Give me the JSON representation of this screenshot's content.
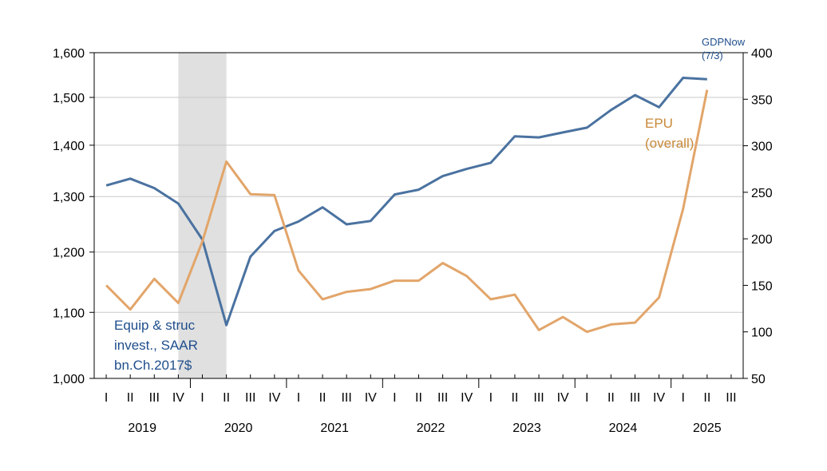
{
  "chart_data": {
    "type": "line",
    "x": [
      "2019Q1",
      "2019Q2",
      "2019Q3",
      "2019Q4",
      "2020Q1",
      "2020Q2",
      "2020Q3",
      "2020Q4",
      "2021Q1",
      "2021Q2",
      "2021Q3",
      "2021Q4",
      "2022Q1",
      "2022Q2",
      "2022Q3",
      "2022Q4",
      "2023Q1",
      "2023Q2",
      "2023Q3",
      "2023Q4",
      "2024Q1",
      "2024Q2",
      "2024Q3",
      "2024Q4",
      "2025Q1",
      "2025Q2"
    ],
    "quarter_ticks": [
      "I",
      "II",
      "III",
      "IV",
      "I",
      "II",
      "III",
      "IV",
      "I",
      "II",
      "III",
      "IV",
      "I",
      "II",
      "III",
      "IV",
      "I",
      "II",
      "III",
      "IV",
      "I",
      "II",
      "III",
      "IV",
      "I",
      "II",
      "III"
    ],
    "years": [
      "2019",
      "2020",
      "2021",
      "2022",
      "2023",
      "2024",
      "2025"
    ],
    "left_axis": {
      "ticks": [
        1000,
        1100,
        1200,
        1300,
        1400,
        1500,
        1600
      ],
      "tick_labels": [
        "1,000",
        "1,100",
        "1,200",
        "1,300",
        "1,400",
        "1,500",
        "1,600"
      ],
      "ylim": [
        1000,
        1600
      ],
      "scale": "log"
    },
    "right_axis": {
      "ticks": [
        50,
        100,
        150,
        200,
        250,
        300,
        350,
        400
      ],
      "tick_labels": [
        "50",
        "100",
        "150",
        "200",
        "250",
        "300",
        "350",
        "400"
      ],
      "ylim": [
        50,
        400
      ],
      "scale": "linear"
    },
    "grid": true,
    "recession_shading": {
      "start": "2019Q4",
      "end": "2020Q2",
      "color": "#e0e0e0"
    },
    "series": [
      {
        "name": "Equip & struc invest., SAAR bn.Ch.2017$",
        "axis": "left",
        "color": "#4a72a0",
        "values": [
          1321,
          1334,
          1316,
          1287,
          1222,
          1080,
          1192,
          1237,
          1254,
          1280,
          1249,
          1255,
          1304,
          1313,
          1339,
          1353,
          1365,
          1418,
          1416,
          1426,
          1436,
          1473,
          1505,
          1479,
          1543,
          1540
        ]
      },
      {
        "name": "EPU (overall)",
        "axis": "right",
        "color": "#e2a56a",
        "values": [
          150,
          124,
          157,
          131,
          197,
          283,
          248,
          247,
          166,
          135,
          143,
          146,
          155,
          155,
          174,
          160,
          135,
          140,
          102,
          116,
          100,
          108,
          110,
          137,
          232,
          360
        ]
      }
    ],
    "annotations": {
      "invest_line1": "Equip & struc",
      "invest_line2": "invest., SAAR",
      "invest_line3": "bn.Ch.2017$",
      "epu_line1": "EPU",
      "epu_line2": "(overall)",
      "gdpnow_line1": "GDPNow",
      "gdpnow_line2": "(7/3)"
    }
  }
}
